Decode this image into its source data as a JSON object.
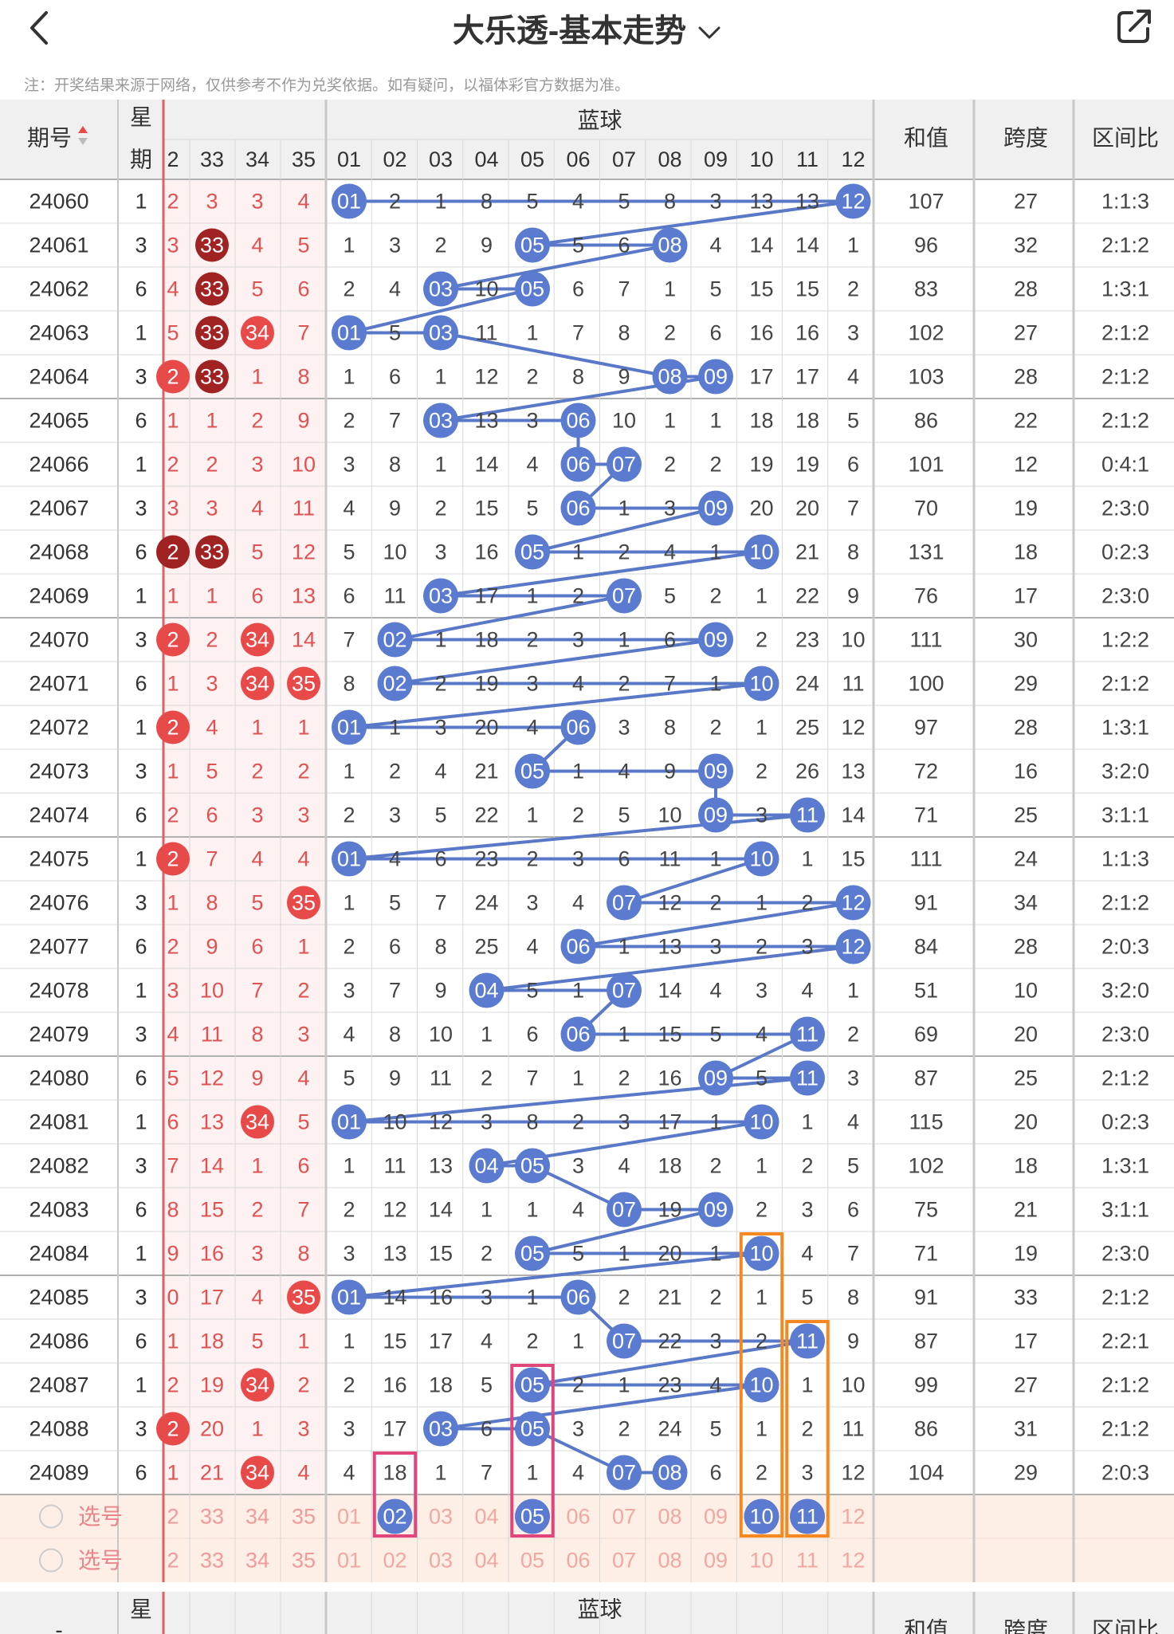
{
  "header": {
    "title": "大乐透-基本走势",
    "back_icon": "chevron-left-icon",
    "dropdown_icon": "chevron-down-icon",
    "share_icon": "share-icon"
  },
  "note": "注：开奖结果来源于网络，仅供参考不作为兑奖依据。如有疑问，以福体彩官方数据为准。",
  "table": {
    "col_issue": "期号",
    "col_week": [
      "星",
      "期"
    ],
    "col_blue": "蓝球",
    "col_sum": "和值",
    "col_span": "跨度",
    "col_ratio": "区间比",
    "front_headers": [
      "2",
      "33",
      "34",
      "35"
    ],
    "blue_headers": [
      "01",
      "02",
      "03",
      "04",
      "05",
      "06",
      "07",
      "08",
      "09",
      "10",
      "11",
      "12"
    ],
    "pick_label": "选号",
    "footer_issue": "-",
    "rows": [
      {
        "issue": "24060",
        "week": "1",
        "front": [
          "2",
          "3",
          "3",
          "4"
        ],
        "blue": [
          "01",
          "2",
          "1",
          "8",
          "5",
          "4",
          "5",
          "8",
          "3",
          "13",
          "13",
          "12"
        ],
        "sum": "107",
        "span": "27",
        "ratio": "1:1:3"
      },
      {
        "issue": "24061",
        "week": "3",
        "front": [
          "3",
          "33",
          "4",
          "5"
        ],
        "blue": [
          "1",
          "3",
          "2",
          "9",
          "05",
          "5",
          "6",
          "08",
          "4",
          "14",
          "14",
          "1"
        ],
        "sum": "96",
        "span": "32",
        "ratio": "2:1:2"
      },
      {
        "issue": "24062",
        "week": "6",
        "front": [
          "4",
          "33",
          "5",
          "6"
        ],
        "blue": [
          "2",
          "4",
          "03",
          "10",
          "05",
          "6",
          "7",
          "1",
          "5",
          "15",
          "15",
          "2"
        ],
        "sum": "83",
        "span": "28",
        "ratio": "1:3:1"
      },
      {
        "issue": "24063",
        "week": "1",
        "front": [
          "5",
          "33",
          "34",
          "7"
        ],
        "blue": [
          "01",
          "5",
          "03",
          "11",
          "1",
          "7",
          "8",
          "2",
          "6",
          "16",
          "16",
          "3"
        ],
        "sum": "102",
        "span": "27",
        "ratio": "2:1:2"
      },
      {
        "issue": "24064",
        "week": "3",
        "front": [
          "2",
          "33",
          "1",
          "8"
        ],
        "blue": [
          "1",
          "6",
          "1",
          "12",
          "2",
          "8",
          "9",
          "08",
          "09",
          "17",
          "17",
          "4"
        ],
        "sum": "103",
        "span": "28",
        "ratio": "2:1:2"
      },
      {
        "issue": "24065",
        "week": "6",
        "front": [
          "1",
          "1",
          "2",
          "9"
        ],
        "blue": [
          "2",
          "7",
          "03",
          "13",
          "3",
          "06",
          "10",
          "1",
          "1",
          "18",
          "18",
          "5"
        ],
        "sum": "86",
        "span": "22",
        "ratio": "2:1:2"
      },
      {
        "issue": "24066",
        "week": "1",
        "front": [
          "2",
          "2",
          "3",
          "10"
        ],
        "blue": [
          "3",
          "8",
          "1",
          "14",
          "4",
          "06",
          "07",
          "2",
          "2",
          "19",
          "19",
          "6"
        ],
        "sum": "101",
        "span": "12",
        "ratio": "0:4:1"
      },
      {
        "issue": "24067",
        "week": "3",
        "front": [
          "3",
          "3",
          "4",
          "11"
        ],
        "blue": [
          "4",
          "9",
          "2",
          "15",
          "5",
          "06",
          "1",
          "3",
          "09",
          "20",
          "20",
          "7"
        ],
        "sum": "70",
        "span": "19",
        "ratio": "2:3:0"
      },
      {
        "issue": "24068",
        "week": "6",
        "front": [
          "2",
          "33",
          "5",
          "12"
        ],
        "blue": [
          "5",
          "10",
          "3",
          "16",
          "05",
          "1",
          "2",
          "4",
          "1",
          "10",
          "21",
          "8"
        ],
        "sum": "131",
        "span": "18",
        "ratio": "0:2:3"
      },
      {
        "issue": "24069",
        "week": "1",
        "front": [
          "1",
          "1",
          "6",
          "13"
        ],
        "blue": [
          "6",
          "11",
          "03",
          "17",
          "1",
          "2",
          "07",
          "5",
          "2",
          "1",
          "22",
          "9"
        ],
        "sum": "76",
        "span": "17",
        "ratio": "2:3:0"
      },
      {
        "issue": "24070",
        "week": "3",
        "front": [
          "2",
          "2",
          "34",
          "14"
        ],
        "blue": [
          "7",
          "02",
          "1",
          "18",
          "2",
          "3",
          "1",
          "6",
          "09",
          "2",
          "23",
          "10"
        ],
        "sum": "111",
        "span": "30",
        "ratio": "1:2:2"
      },
      {
        "issue": "24071",
        "week": "6",
        "front": [
          "1",
          "3",
          "34",
          "35"
        ],
        "blue": [
          "8",
          "02",
          "2",
          "19",
          "3",
          "4",
          "2",
          "7",
          "1",
          "10",
          "24",
          "11"
        ],
        "sum": "100",
        "span": "29",
        "ratio": "2:1:2"
      },
      {
        "issue": "24072",
        "week": "1",
        "front": [
          "2",
          "4",
          "1",
          "1"
        ],
        "blue": [
          "01",
          "1",
          "3",
          "20",
          "4",
          "06",
          "3",
          "8",
          "2",
          "1",
          "25",
          "12"
        ],
        "sum": "97",
        "span": "28",
        "ratio": "1:3:1"
      },
      {
        "issue": "24073",
        "week": "3",
        "front": [
          "1",
          "5",
          "2",
          "2"
        ],
        "blue": [
          "1",
          "2",
          "4",
          "21",
          "05",
          "1",
          "4",
          "9",
          "09",
          "2",
          "26",
          "13"
        ],
        "sum": "72",
        "span": "16",
        "ratio": "3:2:0"
      },
      {
        "issue": "24074",
        "week": "6",
        "front": [
          "2",
          "6",
          "3",
          "3"
        ],
        "blue": [
          "2",
          "3",
          "5",
          "22",
          "1",
          "2",
          "5",
          "10",
          "09",
          "3",
          "11",
          "14"
        ],
        "sum": "71",
        "span": "25",
        "ratio": "3:1:1"
      },
      {
        "issue": "24075",
        "week": "1",
        "front": [
          "2",
          "7",
          "4",
          "4"
        ],
        "blue": [
          "01",
          "4",
          "6",
          "23",
          "2",
          "3",
          "6",
          "11",
          "1",
          "10",
          "1",
          "15"
        ],
        "sum": "111",
        "span": "24",
        "ratio": "1:1:3"
      },
      {
        "issue": "24076",
        "week": "3",
        "front": [
          "1",
          "8",
          "5",
          "35"
        ],
        "blue": [
          "1",
          "5",
          "7",
          "24",
          "3",
          "4",
          "07",
          "12",
          "2",
          "1",
          "2",
          "12"
        ],
        "sum": "91",
        "span": "34",
        "ratio": "2:1:2"
      },
      {
        "issue": "24077",
        "week": "6",
        "front": [
          "2",
          "9",
          "6",
          "1"
        ],
        "blue": [
          "2",
          "6",
          "8",
          "25",
          "4",
          "06",
          "1",
          "13",
          "3",
          "2",
          "3",
          "12"
        ],
        "sum": "84",
        "span": "28",
        "ratio": "2:0:3"
      },
      {
        "issue": "24078",
        "week": "1",
        "front": [
          "3",
          "10",
          "7",
          "2"
        ],
        "blue": [
          "3",
          "7",
          "9",
          "04",
          "5",
          "1",
          "07",
          "14",
          "4",
          "3",
          "4",
          "1"
        ],
        "sum": "51",
        "span": "10",
        "ratio": "3:2:0"
      },
      {
        "issue": "24079",
        "week": "3",
        "front": [
          "4",
          "11",
          "8",
          "3"
        ],
        "blue": [
          "4",
          "8",
          "10",
          "1",
          "6",
          "06",
          "1",
          "15",
          "5",
          "4",
          "11",
          "2"
        ],
        "sum": "69",
        "span": "20",
        "ratio": "2:3:0"
      },
      {
        "issue": "24080",
        "week": "6",
        "front": [
          "5",
          "12",
          "9",
          "4"
        ],
        "blue": [
          "5",
          "9",
          "11",
          "2",
          "7",
          "1",
          "2",
          "16",
          "09",
          "5",
          "11",
          "3"
        ],
        "sum": "87",
        "span": "25",
        "ratio": "2:1:2"
      },
      {
        "issue": "24081",
        "week": "1",
        "front": [
          "6",
          "13",
          "34",
          "5"
        ],
        "blue": [
          "01",
          "10",
          "12",
          "3",
          "8",
          "2",
          "3",
          "17",
          "1",
          "10",
          "1",
          "4"
        ],
        "sum": "115",
        "span": "20",
        "ratio": "0:2:3"
      },
      {
        "issue": "24082",
        "week": "3",
        "front": [
          "7",
          "14",
          "1",
          "6"
        ],
        "blue": [
          "1",
          "11",
          "13",
          "04",
          "05",
          "3",
          "4",
          "18",
          "2",
          "1",
          "2",
          "5"
        ],
        "sum": "102",
        "span": "18",
        "ratio": "1:3:1"
      },
      {
        "issue": "24083",
        "week": "6",
        "front": [
          "8",
          "15",
          "2",
          "7"
        ],
        "blue": [
          "2",
          "12",
          "14",
          "1",
          "1",
          "4",
          "07",
          "19",
          "09",
          "2",
          "3",
          "6"
        ],
        "sum": "75",
        "span": "21",
        "ratio": "3:1:1"
      },
      {
        "issue": "24084",
        "week": "1",
        "front": [
          "9",
          "16",
          "3",
          "8"
        ],
        "blue": [
          "3",
          "13",
          "15",
          "2",
          "05",
          "5",
          "1",
          "20",
          "1",
          "10",
          "4",
          "7"
        ],
        "sum": "71",
        "span": "19",
        "ratio": "2:3:0"
      },
      {
        "issue": "24085",
        "week": "3",
        "front": [
          "0",
          "17",
          "4",
          "35"
        ],
        "blue": [
          "01",
          "14",
          "16",
          "3",
          "1",
          "06",
          "2",
          "21",
          "2",
          "1",
          "5",
          "8"
        ],
        "sum": "91",
        "span": "33",
        "ratio": "2:1:2"
      },
      {
        "issue": "24086",
        "week": "6",
        "front": [
          "1",
          "18",
          "5",
          "1"
        ],
        "blue": [
          "1",
          "15",
          "17",
          "4",
          "2",
          "1",
          "07",
          "22",
          "3",
          "2",
          "11",
          "9"
        ],
        "sum": "87",
        "span": "17",
        "ratio": "2:2:1"
      },
      {
        "issue": "24087",
        "week": "1",
        "front": [
          "2",
          "19",
          "34",
          "2"
        ],
        "blue": [
          "2",
          "16",
          "18",
          "5",
          "05",
          "2",
          "1",
          "23",
          "4",
          "10",
          "1",
          "10"
        ],
        "sum": "99",
        "span": "27",
        "ratio": "2:1:2"
      },
      {
        "issue": "24088",
        "week": "3",
        "front": [
          "2",
          "20",
          "1",
          "3"
        ],
        "blue": [
          "3",
          "17",
          "03",
          "6",
          "05",
          "3",
          "2",
          "24",
          "5",
          "1",
          "2",
          "11"
        ],
        "sum": "86",
        "span": "31",
        "ratio": "2:1:2"
      },
      {
        "issue": "24089",
        "week": "6",
        "front": [
          "1",
          "21",
          "34",
          "4"
        ],
        "blue": [
          "4",
          "18",
          "1",
          "7",
          "1",
          "4",
          "07",
          "08",
          "6",
          "2",
          "3",
          "12"
        ],
        "sum": "104",
        "span": "29",
        "ratio": "2:0:3"
      }
    ]
  },
  "highlights": {
    "balls": [
      {
        "row": 1,
        "col": 1,
        "type": "dark"
      },
      {
        "row": 2,
        "col": 1,
        "type": "dark"
      },
      {
        "row": 3,
        "col": 1,
        "type": "dark"
      },
      {
        "row": 3,
        "col": 2,
        "type": "light"
      },
      {
        "row": 4,
        "col": 0,
        "type": "light"
      },
      {
        "row": 4,
        "col": 1,
        "type": "dark"
      },
      {
        "row": 8,
        "col": 0,
        "type": "dark"
      },
      {
        "row": 8,
        "col": 1,
        "type": "dark"
      },
      {
        "row": 10,
        "col": 0,
        "type": "light"
      },
      {
        "row": 10,
        "col": 2,
        "type": "light"
      },
      {
        "row": 11,
        "col": 2,
        "type": "light"
      },
      {
        "row": 11,
        "col": 3,
        "type": "light"
      },
      {
        "row": 12,
        "col": 0,
        "type": "light"
      },
      {
        "row": 15,
        "col": 0,
        "type": "light"
      },
      {
        "row": 16,
        "col": 3,
        "type": "light"
      },
      {
        "row": 21,
        "col": 2,
        "type": "light"
      },
      {
        "row": 25,
        "col": 3,
        "type": "light"
      },
      {
        "row": 27,
        "col": 2,
        "type": "light"
      },
      {
        "row": 28,
        "col": 0,
        "type": "light"
      },
      {
        "row": 29,
        "col": 2,
        "type": "light"
      }
    ],
    "blue": [
      [
        0,
        11
      ],
      [
        4,
        7
      ],
      [
        2,
        4
      ],
      [
        0,
        2
      ],
      [
        7,
        8
      ],
      [
        2,
        5
      ],
      [
        5,
        6
      ],
      [
        5,
        8
      ],
      [
        4,
        9
      ],
      [
        2,
        6
      ],
      [
        1,
        8
      ],
      [
        1,
        9
      ],
      [
        0,
        5
      ],
      [
        4,
        8
      ],
      [
        8,
        10
      ],
      [
        0,
        9
      ],
      [
        6,
        11
      ],
      [
        5,
        11
      ],
      [
        3,
        6
      ],
      [
        5,
        10
      ],
      [
        8,
        10
      ],
      [
        0,
        9
      ],
      [
        3,
        4
      ],
      [
        6,
        8
      ],
      [
        4,
        9
      ],
      [
        0,
        5
      ],
      [
        6,
        10
      ],
      [
        4,
        9
      ],
      [
        2,
        4
      ],
      [
        6,
        7
      ]
    ],
    "pick_blue": [
      1,
      4,
      9,
      10
    ],
    "orange_boxes": [
      {
        "col": 9,
        "from": 24,
        "to": 30
      },
      {
        "col": 10,
        "from": 26,
        "to": 30
      }
    ],
    "pink_boxes": [
      {
        "col": 1,
        "from": 29,
        "to": 30
      },
      {
        "col": 4,
        "from": 27,
        "to": 30
      }
    ]
  },
  "colors": {
    "blue_ball": "#5b7bd0",
    "line": "#5a78c8",
    "red_ball": "#e84a4a",
    "dark_red": "#a02222",
    "grid": "#d8d8d8",
    "header_bg": "#f0f0f0",
    "front_text": "#e05252",
    "pick_bg": "#fdeee6",
    "orange": "#f5891f",
    "pink": "#e0457b"
  }
}
